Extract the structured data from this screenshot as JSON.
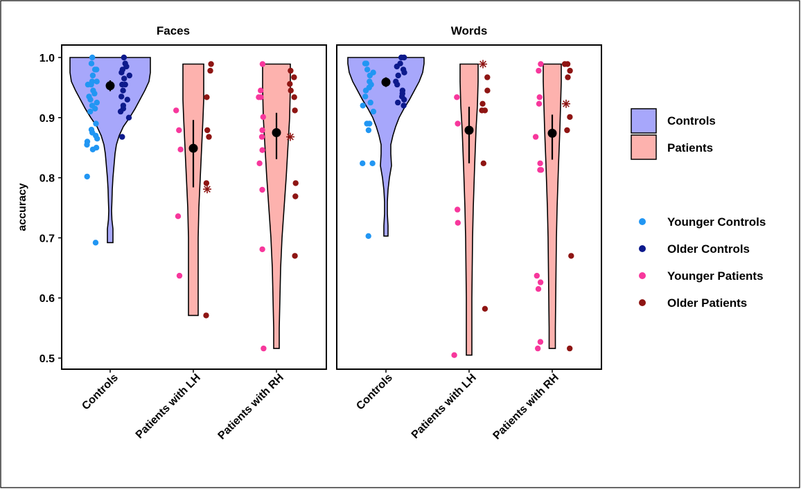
{
  "chart_data": [
    {
      "type": "violin",
      "panel": "Faces",
      "ylabel": "accuracy",
      "ylim": [
        0.48,
        1.02
      ],
      "yticks": [
        "0.5",
        "0.6",
        "0.7",
        "0.8",
        "0.9",
        "1.0"
      ],
      "categories": [
        "Controls",
        "Patients with LH",
        "Patients with RH"
      ],
      "groups": [
        {
          "category": "Controls",
          "fill": "Controls",
          "violin_range": [
            0.692,
            1.0
          ],
          "mean": 0.953,
          "ci": [
            0.944,
            0.962
          ],
          "points": {
            "Younger Controls": [
              1.0,
              0.99,
              0.98,
              0.98,
              0.97,
              0.96,
              0.96,
              0.955,
              0.955,
              0.945,
              0.94,
              0.935,
              0.93,
              0.925,
              0.92,
              0.915,
              0.91,
              0.89,
              0.88,
              0.875,
              0.87,
              0.865,
              0.86,
              0.855,
              0.85,
              0.847,
              0.802,
              0.692
            ],
            "Older Controls": [
              1.0,
              0.99,
              0.985,
              0.98,
              0.975,
              0.97,
              0.965,
              0.955,
              0.955,
              0.945,
              0.935,
              0.93,
              0.92,
              0.915,
              0.91,
              0.9,
              0.868
            ]
          },
          "outliers": []
        },
        {
          "category": "Patients with LH",
          "fill": "Patients",
          "violin_range": [
            0.571,
            0.989
          ],
          "mean": 0.849,
          "ci": [
            0.784,
            0.896
          ],
          "points": {
            "Younger Patients": [
              0.912,
              0.879,
              0.847,
              0.736,
              0.637
            ],
            "Older Patients": [
              0.989,
              0.978,
              0.934,
              0.879,
              0.868,
              0.791,
              0.571
            ]
          },
          "outliers": [
            {
              "group": "Older Patients",
              "y": 0.781
            }
          ]
        },
        {
          "category": "Patients with RH",
          "fill": "Patients",
          "violin_range": [
            0.516,
            0.989
          ],
          "mean": 0.875,
          "ci": [
            0.831,
            0.908
          ],
          "points": {
            "Younger Patients": [
              0.989,
              0.945,
              0.934,
              0.934,
              0.901,
              0.879,
              0.868,
              0.846,
              0.824,
              0.78,
              0.681,
              0.516
            ],
            "Older Patients": [
              0.978,
              0.967,
              0.956,
              0.945,
              0.934,
              0.912,
              0.791,
              0.769,
              0.67
            ]
          },
          "outliers": [
            {
              "group": "Older Patients",
              "y": 0.868
            }
          ]
        }
      ]
    },
    {
      "type": "violin",
      "panel": "Words",
      "ylabel": "accuracy",
      "ylim": [
        0.48,
        1.02
      ],
      "yticks": [
        "0.5",
        "0.6",
        "0.7",
        "0.8",
        "0.9",
        "1.0"
      ],
      "categories": [
        "Controls",
        "Patients with LH",
        "Patients with RH"
      ],
      "groups": [
        {
          "category": "Controls",
          "fill": "Controls",
          "violin_range": [
            0.703,
            1.0
          ],
          "mean": 0.959,
          "ci": [
            0.951,
            0.967
          ],
          "points": {
            "Younger Controls": [
              0.99,
              0.99,
              0.98,
              0.975,
              0.97,
              0.96,
              0.955,
              0.95,
              0.945,
              0.935,
              0.925,
              0.92,
              0.91,
              0.89,
              0.89,
              0.879,
              0.824,
              0.824,
              0.703
            ],
            "Older Controls": [
              1.0,
              1.0,
              0.99,
              0.985,
              0.98,
              0.975,
              0.97,
              0.96,
              0.955,
              0.945,
              0.94,
              0.935,
              0.93,
              0.925,
              0.92
            ]
          },
          "outliers": []
        },
        {
          "category": "Patients with LH",
          "fill": "Patients",
          "violin_range": [
            0.505,
            0.989
          ],
          "mean": 0.879,
          "ci": [
            0.824,
            0.918
          ],
          "points": {
            "Younger Patients": [
              0.934,
              0.89,
              0.747,
              0.725,
              0.505
            ],
            "Older Patients": [
              0.967,
              0.945,
              0.923,
              0.912,
              0.912,
              0.824,
              0.582
            ]
          },
          "outliers": [
            {
              "group": "Older Patients",
              "y": 0.989
            }
          ]
        },
        {
          "category": "Patients with RH",
          "fill": "Patients",
          "violin_range": [
            0.516,
            0.989
          ],
          "mean": 0.874,
          "ci": [
            0.83,
            0.905
          ],
          "points": {
            "Younger Patients": [
              0.989,
              0.978,
              0.934,
              0.923,
              0.868,
              0.824,
              0.813,
              0.813,
              0.637,
              0.626,
              0.615,
              0.527,
              0.516
            ],
            "Older Patients": [
              0.989,
              0.989,
              0.978,
              0.967,
              0.901,
              0.879,
              0.67,
              0.516
            ]
          },
          "outliers": [
            {
              "group": "Older Patients",
              "y": 0.923
            }
          ]
        }
      ]
    }
  ],
  "legend_fill": {
    "items": [
      {
        "name": "Controls",
        "color": "#a7a7fb"
      },
      {
        "name": "Patients",
        "color": "#fdb2ae"
      }
    ]
  },
  "legend_points": {
    "items": [
      {
        "name": "Younger Controls",
        "color": "#2196f3"
      },
      {
        "name": "Older Controls",
        "color": "#0d1a8c"
      },
      {
        "name": "Younger Patients",
        "color": "#f7379c"
      },
      {
        "name": "Older Patients",
        "color": "#8e1513"
      }
    ]
  }
}
